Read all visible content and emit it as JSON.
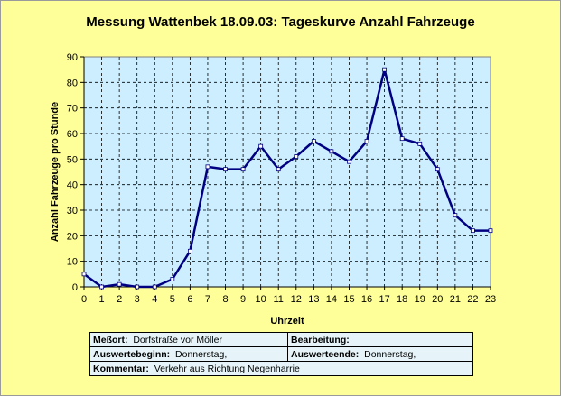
{
  "chart_data": {
    "type": "line",
    "title": "Messung Wattenbek 18.09.03: Tageskurve Anzahl Fahrzeuge",
    "xlabel": "Uhrzeit",
    "ylabel": "Anzahl Fahrzeuge pro Stunde",
    "x": [
      0,
      1,
      2,
      3,
      4,
      5,
      6,
      7,
      8,
      9,
      10,
      11,
      12,
      13,
      14,
      15,
      16,
      17,
      18,
      19,
      20,
      21,
      22,
      23
    ],
    "series": [
      {
        "values": [
          5,
          0,
          1,
          0,
          0,
          3,
          14,
          47,
          46,
          46,
          55,
          46,
          51,
          57,
          53,
          49,
          57,
          85,
          58,
          56,
          46,
          28,
          22,
          22
        ]
      }
    ],
    "xlim": [
      0,
      23
    ],
    "ylim": [
      0,
      90
    ],
    "yticks": [
      0,
      10,
      20,
      30,
      40,
      50,
      60,
      70,
      80,
      90
    ],
    "grid": true,
    "line_color": "#000080",
    "marker_color": "#ffffff",
    "plot_background": "#cceeff",
    "frame_background": "#ffff99"
  },
  "info": {
    "messort_label": "Meßort:",
    "messort_value": "Dorfstraße vor Möller",
    "bearbeitung_label": "Bearbeitung:",
    "bearbeitung_value": "",
    "auswertebeginn_label": "Auswertebeginn:",
    "auswertebeginn_value": "Donnerstag,",
    "auswerteende_label": "Auswerteende:",
    "auswerteende_value": "Donnerstag,",
    "kommentar_label": "Kommentar:",
    "kommentar_value": "Verkehr aus Richtung Negenharrie"
  }
}
